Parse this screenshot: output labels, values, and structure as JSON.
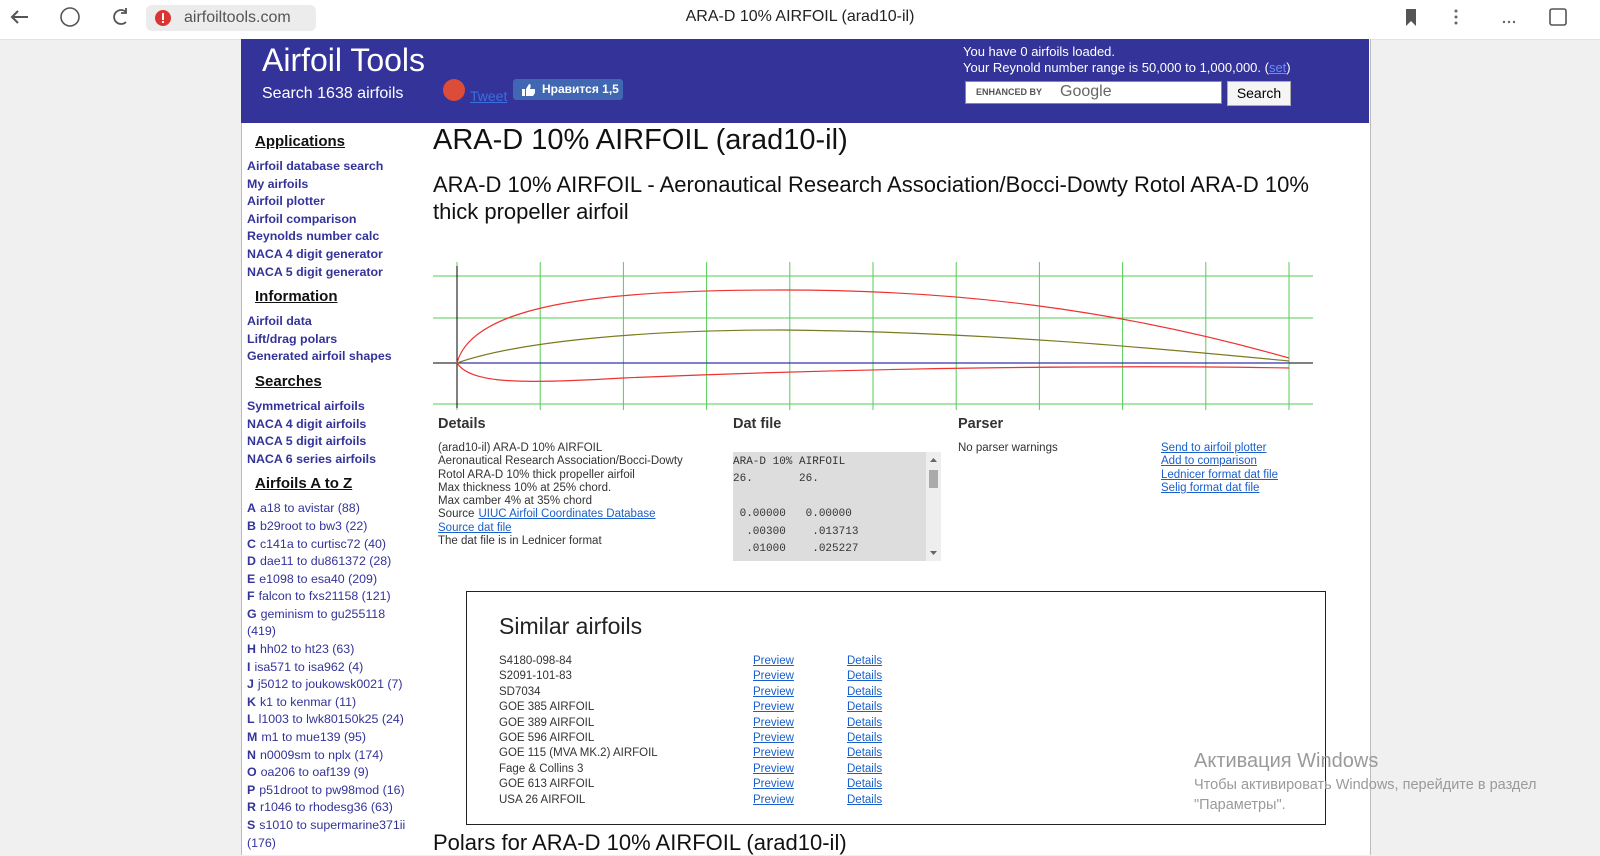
{
  "browser": {
    "url": "airfoiltools.com",
    "tab_title": "ARA-D 10% AIRFOIL (arad10-il)"
  },
  "header": {
    "site_title": "Airfoil Tools",
    "search_count": "Search 1638 airfoils",
    "tweet": "Tweet",
    "like": "Нравится 1,5",
    "loaded": "You have 0 airfoils loaded.",
    "reynolds": "Your Reynold number range is 50,000 to 1,000,000. (",
    "reynolds_link": "set",
    "reynolds_close": ")",
    "search_enhanced": "ENHANCED BY",
    "search_brand": "Google",
    "search_button": "Search"
  },
  "sidebar": {
    "sections": [
      {
        "heading": "Applications",
        "links": [
          "Airfoil database search",
          "My airfoils",
          "Airfoil plotter",
          "Airfoil comparison",
          "Reynolds number calc",
          "NACA 4 digit generator",
          "NACA 5 digit generator"
        ]
      },
      {
        "heading": "Information",
        "links": [
          "Airfoil data",
          "Lift/drag polars",
          "Generated airfoil shapes"
        ]
      },
      {
        "heading": "Searches",
        "links": [
          "Symmetrical airfoils",
          "NACA 4 digit airfoils",
          "NACA 5 digit airfoils",
          "NACA 6 series airfoils"
        ]
      }
    ],
    "az": {
      "heading": "Airfoils A to Z",
      "entries": [
        {
          "letter": "A",
          "text": "a18 to avistar (88)"
        },
        {
          "letter": "B",
          "text": "b29root to bw3 (22)"
        },
        {
          "letter": "C",
          "text": "c141a to curtisc72 (40)"
        },
        {
          "letter": "D",
          "text": "dae11 to du861372 (28)"
        },
        {
          "letter": "E",
          "text": "e1098 to esa40 (209)"
        },
        {
          "letter": "F",
          "text": "falcon to fxs21158 (121)"
        },
        {
          "letter": "G",
          "text": "geminism to gu255118 (419)"
        },
        {
          "letter": "H",
          "text": "hh02 to ht23 (63)"
        },
        {
          "letter": "I",
          "text": "isa571 to isa962 (4)"
        },
        {
          "letter": "J",
          "text": "j5012 to joukowsk0021 (7)"
        },
        {
          "letter": "K",
          "text": "k1 to kenmar (11)"
        },
        {
          "letter": "L",
          "text": "l1003 to lwk80150k25 (24)"
        },
        {
          "letter": "M",
          "text": "m1 to mue139 (95)"
        },
        {
          "letter": "N",
          "text": "n0009sm to nplx (174)"
        },
        {
          "letter": "O",
          "text": "oa206 to oaf139 (9)"
        },
        {
          "letter": "P",
          "text": "p51droot to pw98mod (16)"
        },
        {
          "letter": "R",
          "text": "r1046 to rhodesg36 (63)"
        },
        {
          "letter": "S",
          "text": "s1010 to supermarine371ii (176)"
        }
      ]
    }
  },
  "main": {
    "title": "ARA-D 10% AIRFOIL (arad10-il)",
    "subtitle": "ARA-D 10% AIRFOIL - Aeronautical Research Association/Bocci-Dowty Rotol ARA-D 10% thick propeller airfoil",
    "details": {
      "heading": "Details",
      "lines": [
        "(arad10-il) ARA-D 10% AIRFOIL",
        "Aeronautical Research Association/Bocci-Dowty",
        "Rotol ARA-D 10% thick propeller airfoil",
        "Max thickness 10% at 25% chord.",
        "Max camber 4% at 35% chord"
      ],
      "source_prefix": "Source",
      "source_link": "UIUC Airfoil Coordinates Database",
      "dat_link": "Source dat file",
      "format_note": "The dat file is in Lednicer format"
    },
    "dat_file": {
      "heading": "Dat file",
      "header_lines": [
        "ARA-D 10% AIRFOIL",
        "26.       26."
      ],
      "coord_lines": [
        " 0.00000   0.00000",
        "  .00300    .013713",
        "  .01000    .025227"
      ]
    },
    "parser": {
      "heading": "Parser",
      "message": "No parser warnings",
      "links": [
        "Send to airfoil plotter",
        "Add to comparison",
        "Lednicer format dat file",
        "Selig format dat file"
      ]
    },
    "similar": {
      "heading": "Similar airfoils",
      "rows": [
        {
          "name": "S4180-098-84",
          "preview": "Preview",
          "details": "Details"
        },
        {
          "name": "S2091-101-83",
          "preview": "Preview",
          "details": "Details"
        },
        {
          "name": "SD7034",
          "preview": "Preview",
          "details": "Details"
        },
        {
          "name": "GOE 385 AIRFOIL",
          "preview": "Preview",
          "details": "Details"
        },
        {
          "name": "GOE 389 AIRFOIL",
          "preview": "Preview",
          "details": "Details"
        },
        {
          "name": "GOE 596 AIRFOIL",
          "preview": "Preview",
          "details": "Details"
        },
        {
          "name": "GOE 115 (MVA MK.2) AIRFOIL",
          "preview": "Preview",
          "details": "Details"
        },
        {
          "name": "Fage & Collins 3",
          "preview": "Preview",
          "details": "Details"
        },
        {
          "name": "GOE 613 AIRFOIL",
          "preview": "Preview",
          "details": "Details"
        },
        {
          "name": "USA 26 AIRFOIL",
          "preview": "Preview",
          "details": "Details"
        }
      ]
    },
    "polars_heading": "Polars for ARA-D 10% AIRFOIL (arad10-il)"
  },
  "watermark": {
    "title": "Активация Windows",
    "line1": "Чтобы активировать Windows, перейдите в раздел",
    "line2": "\"Параметры\"."
  }
}
